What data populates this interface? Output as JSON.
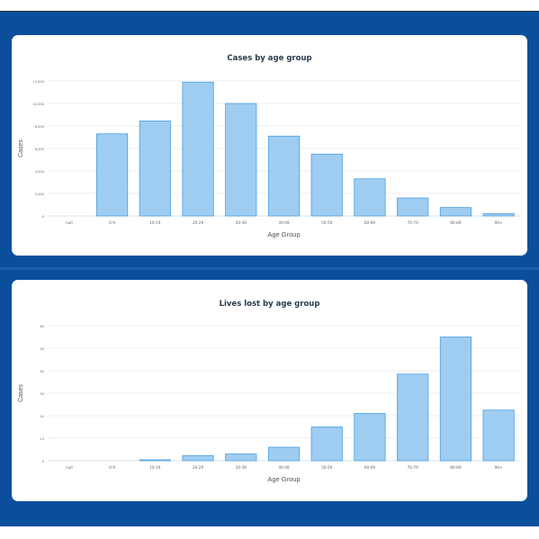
{
  "colors": {
    "band": "#0b4f9c",
    "bar_fill": "#9fcdf2",
    "bar_stroke": "#4a9fe0",
    "grid": "#e4e8ee",
    "axis_text": "#666666"
  },
  "chart_data": [
    {
      "type": "bar",
      "title": "Cases by age group",
      "xlabel": "Age Group",
      "ylabel": "Cases",
      "categories": [
        "null",
        "0-9",
        "10-19",
        "20-29",
        "30-39",
        "40-49",
        "50-59",
        "60-69",
        "70-79",
        "80-89",
        "90+"
      ],
      "values": [
        0,
        7300,
        8450,
        11900,
        10000,
        7100,
        5500,
        3300,
        1600,
        750,
        200
      ],
      "ylim": [
        0,
        12000
      ],
      "yticks": [
        "0",
        "2,000",
        "4,000",
        "6,000",
        "8,000",
        "10,000",
        "12,000"
      ],
      "grid": true
    },
    {
      "type": "bar",
      "title": "Lives lost by age group",
      "xlabel": "Age Group",
      "ylabel": "Cases",
      "categories": [
        "null",
        "0-9",
        "10-19",
        "20-29",
        "30-39",
        "40-49",
        "50-59",
        "60-69",
        "70-79",
        "80-89",
        "90+"
      ],
      "values": [
        0,
        0,
        0.4,
        2.3,
        3,
        6,
        15,
        21,
        38.5,
        55,
        22.5
      ],
      "ylim": [
        0,
        60
      ],
      "yticks": [
        "0",
        "10",
        "20",
        "30",
        "40",
        "50",
        "60"
      ],
      "grid": true
    }
  ]
}
